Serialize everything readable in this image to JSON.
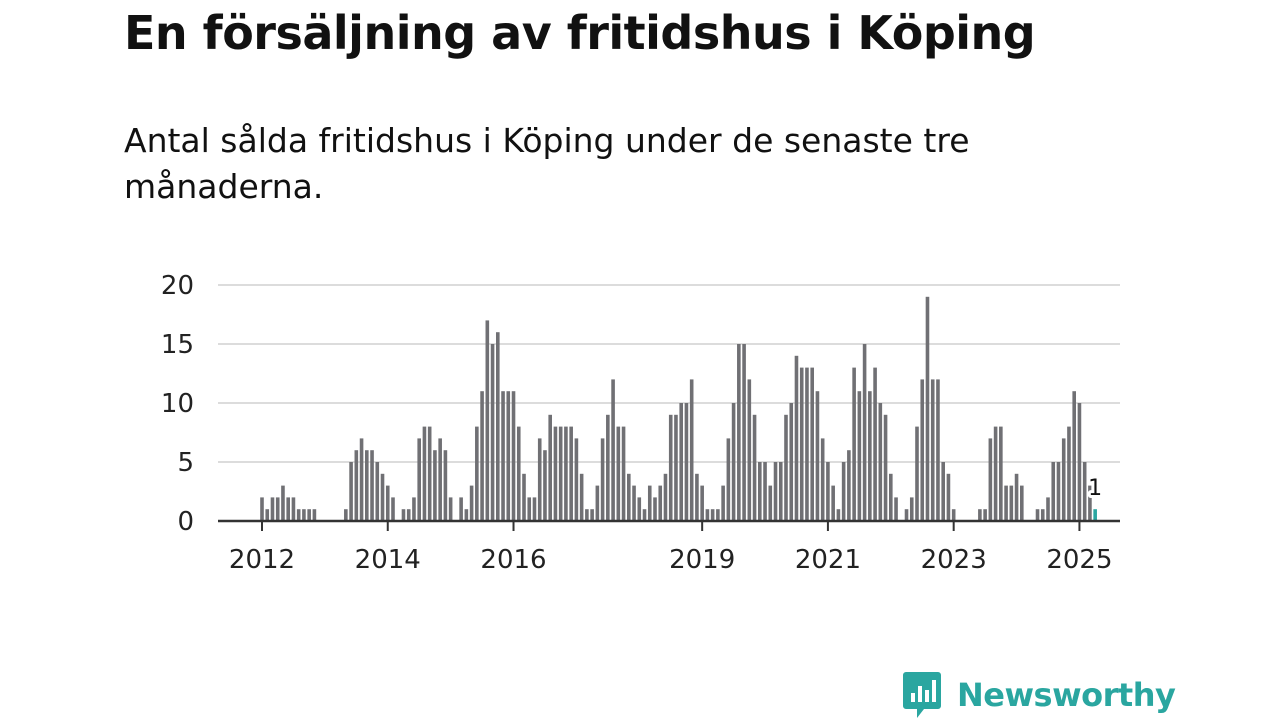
{
  "title": "En försäljning av fritidshus i Köping",
  "subtitle": "Antal sålda fritidshus i Köping under de senaste tre månaderna.",
  "brand": {
    "name": "Newsworthy",
    "color": "#2aa6a0"
  },
  "colors": {
    "bar": "#707074",
    "highlight": "#2aa6a0",
    "grid": "#dcdcdc",
    "axis": "#333333"
  },
  "chart_data": {
    "type": "bar",
    "x_start": "2011-10",
    "x_unit": "month",
    "ylim": [
      0,
      20
    ],
    "yticks": [
      0,
      5,
      10,
      15,
      20
    ],
    "xticks": [
      {
        "label": "2012",
        "month": "2012-01"
      },
      {
        "label": "2014",
        "month": "2014-01"
      },
      {
        "label": "2016",
        "month": "2016-01"
      },
      {
        "label": "2019",
        "month": "2019-01"
      },
      {
        "label": "2021",
        "month": "2021-01"
      },
      {
        "label": "2023",
        "month": "2023-01"
      },
      {
        "label": "2025",
        "month": "2025-01"
      }
    ],
    "grid": true,
    "highlight_last": true,
    "last_value_label": "1",
    "values": [
      0,
      0,
      0,
      2,
      1,
      2,
      2,
      3,
      2,
      2,
      1,
      1,
      1,
      1,
      0,
      0,
      0,
      0,
      0,
      1,
      5,
      6,
      7,
      6,
      6,
      5,
      4,
      3,
      2,
      0,
      1,
      1,
      2,
      7,
      8,
      8,
      6,
      7,
      6,
      2,
      0,
      2,
      1,
      3,
      8,
      11,
      17,
      15,
      16,
      11,
      11,
      11,
      8,
      4,
      2,
      2,
      7,
      6,
      9,
      8,
      8,
      8,
      8,
      7,
      4,
      1,
      1,
      3,
      7,
      9,
      12,
      8,
      8,
      4,
      3,
      2,
      1,
      3,
      2,
      3,
      4,
      9,
      9,
      10,
      10,
      12,
      4,
      3,
      1,
      1,
      1,
      3,
      7,
      10,
      15,
      15,
      12,
      9,
      5,
      5,
      3,
      5,
      5,
      9,
      10,
      14,
      13,
      13,
      13,
      11,
      7,
      5,
      3,
      1,
      5,
      6,
      13,
      11,
      15,
      11,
      13,
      10,
      9,
      4,
      2,
      0,
      1,
      2,
      8,
      12,
      19,
      12,
      12,
      5,
      4,
      1,
      0,
      0,
      0,
      0,
      1,
      1,
      7,
      8,
      8,
      3,
      3,
      4,
      3,
      0,
      0,
      1,
      1,
      2,
      5,
      5,
      7,
      8,
      11,
      10,
      5,
      3,
      1
    ]
  }
}
